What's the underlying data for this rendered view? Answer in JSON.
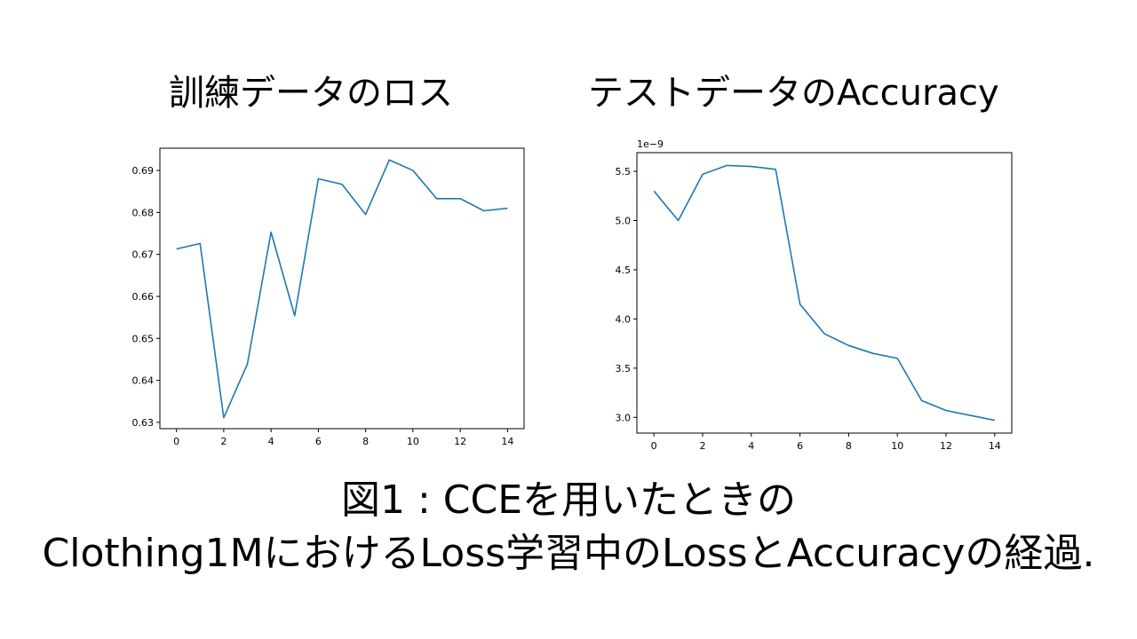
{
  "caption": {
    "line1": "図1 : CCEを用いたときの",
    "line2": "Clothing1MにおけるLoss学習中のLossとAccuracyの経過."
  },
  "chart_data": [
    {
      "type": "line",
      "title": "訓練データのロス",
      "xlabel": "",
      "ylabel": "",
      "x": [
        0,
        1,
        2,
        3,
        4,
        5,
        6,
        7,
        8,
        9,
        10,
        11,
        12,
        13,
        14
      ],
      "y": [
        0.6713,
        0.6726,
        0.6311,
        0.6439,
        0.6753,
        0.6554,
        0.688,
        0.6867,
        0.6795,
        0.6925,
        0.69,
        0.6833,
        0.6833,
        0.6804,
        0.681
      ],
      "xlim": [
        -0.7,
        14.7
      ],
      "ylim": [
        0.6285,
        0.6953
      ],
      "xticks": [
        0,
        2,
        4,
        6,
        8,
        10,
        12,
        14
      ],
      "xtick_labels": [
        "0",
        "2",
        "4",
        "6",
        "8",
        "10",
        "12",
        "14"
      ],
      "yticks": [
        0.63,
        0.64,
        0.65,
        0.66,
        0.67,
        0.68,
        0.69
      ],
      "ytick_labels": [
        "0.63",
        "0.64",
        "0.65",
        "0.66",
        "0.67",
        "0.68",
        "0.69"
      ],
      "offset_text": "",
      "line_color": "#1f77b4",
      "grid": false
    },
    {
      "type": "line",
      "title": "テストデータのAccuracy",
      "xlabel": "",
      "ylabel": "",
      "x": [
        0,
        1,
        2,
        3,
        4,
        5,
        6,
        7,
        8,
        9,
        10,
        11,
        12,
        13,
        14
      ],
      "y": [
        5.3,
        5.0,
        5.47,
        5.56,
        5.55,
        5.52,
        4.15,
        3.85,
        3.73,
        3.65,
        3.6,
        3.17,
        3.07,
        3.02,
        2.97
      ],
      "xlim": [
        -0.7,
        14.7
      ],
      "ylim": [
        2.84,
        5.69
      ],
      "xticks": [
        0,
        2,
        4,
        6,
        8,
        10,
        12,
        14
      ],
      "xtick_labels": [
        "0",
        "2",
        "4",
        "6",
        "8",
        "10",
        "12",
        "14"
      ],
      "yticks": [
        3.0,
        3.5,
        4.0,
        4.5,
        5.0,
        5.5
      ],
      "ytick_labels": [
        "3.0",
        "3.5",
        "4.0",
        "4.5",
        "5.0",
        "5.5"
      ],
      "offset_text": "1e−9",
      "line_color": "#1f77b4",
      "grid": false
    }
  ]
}
